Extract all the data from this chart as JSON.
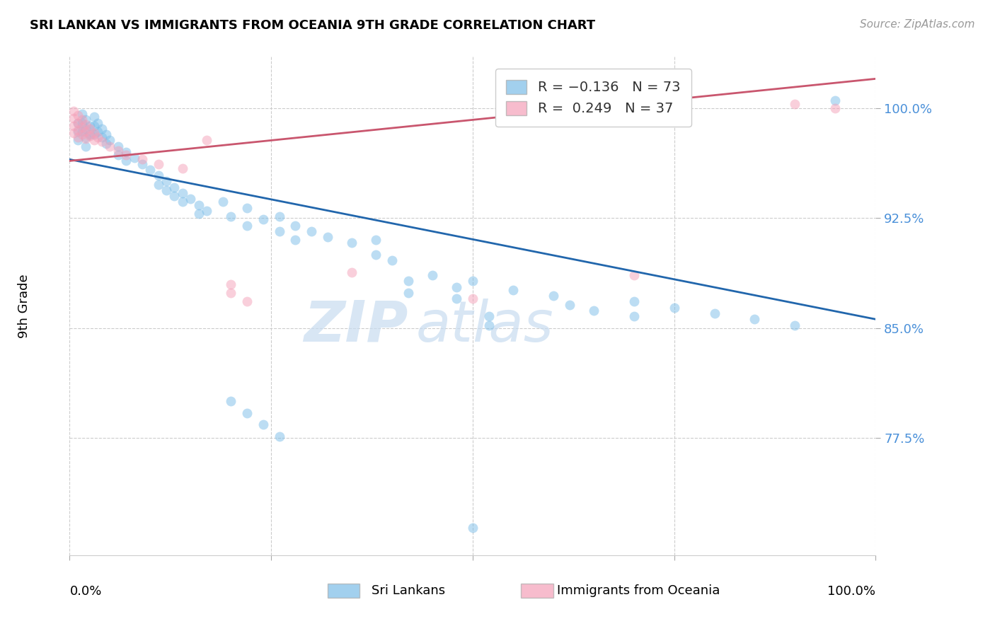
{
  "title": "SRI LANKAN VS IMMIGRANTS FROM OCEANIA 9TH GRADE CORRELATION CHART",
  "source": "Source: ZipAtlas.com",
  "ylabel": "9th Grade",
  "xlim": [
    0.0,
    1.0
  ],
  "ylim": [
    0.695,
    1.035
  ],
  "yticks": [
    0.775,
    0.85,
    0.925,
    1.0
  ],
  "ytick_labels": [
    "77.5%",
    "85.0%",
    "92.5%",
    "100.0%"
  ],
  "xticks": [
    0.0,
    0.25,
    0.5,
    0.75,
    1.0
  ],
  "blue_color": "#7BBDE8",
  "pink_color": "#F4A0B8",
  "blue_line_color": "#2166AC",
  "pink_line_color": "#C9566E",
  "watermark_zip": "ZIP",
  "watermark_atlas": "atlas",
  "blue_scatter": [
    [
      0.01,
      0.99
    ],
    [
      0.01,
      0.984
    ],
    [
      0.01,
      0.978
    ],
    [
      0.015,
      0.996
    ],
    [
      0.015,
      0.99
    ],
    [
      0.015,
      0.984
    ],
    [
      0.02,
      0.992
    ],
    [
      0.02,
      0.986
    ],
    [
      0.02,
      0.98
    ],
    [
      0.02,
      0.974
    ],
    [
      0.025,
      0.988
    ],
    [
      0.025,
      0.982
    ],
    [
      0.03,
      0.994
    ],
    [
      0.03,
      0.988
    ],
    [
      0.03,
      0.982
    ],
    [
      0.035,
      0.99
    ],
    [
      0.035,
      0.984
    ],
    [
      0.04,
      0.986
    ],
    [
      0.04,
      0.98
    ],
    [
      0.045,
      0.982
    ],
    [
      0.045,
      0.976
    ],
    [
      0.05,
      0.978
    ],
    [
      0.06,
      0.974
    ],
    [
      0.06,
      0.968
    ],
    [
      0.07,
      0.97
    ],
    [
      0.07,
      0.964
    ],
    [
      0.08,
      0.966
    ],
    [
      0.09,
      0.962
    ],
    [
      0.1,
      0.958
    ],
    [
      0.11,
      0.954
    ],
    [
      0.11,
      0.948
    ],
    [
      0.12,
      0.95
    ],
    [
      0.12,
      0.944
    ],
    [
      0.13,
      0.946
    ],
    [
      0.13,
      0.94
    ],
    [
      0.14,
      0.942
    ],
    [
      0.14,
      0.936
    ],
    [
      0.15,
      0.938
    ],
    [
      0.16,
      0.934
    ],
    [
      0.16,
      0.928
    ],
    [
      0.17,
      0.93
    ],
    [
      0.19,
      0.936
    ],
    [
      0.2,
      0.926
    ],
    [
      0.22,
      0.932
    ],
    [
      0.22,
      0.92
    ],
    [
      0.24,
      0.924
    ],
    [
      0.26,
      0.926
    ],
    [
      0.26,
      0.916
    ],
    [
      0.28,
      0.92
    ],
    [
      0.28,
      0.91
    ],
    [
      0.3,
      0.916
    ],
    [
      0.32,
      0.912
    ],
    [
      0.35,
      0.908
    ],
    [
      0.38,
      0.91
    ],
    [
      0.38,
      0.9
    ],
    [
      0.4,
      0.896
    ],
    [
      0.42,
      0.882
    ],
    [
      0.42,
      0.874
    ],
    [
      0.45,
      0.886
    ],
    [
      0.48,
      0.878
    ],
    [
      0.48,
      0.87
    ],
    [
      0.5,
      0.882
    ],
    [
      0.52,
      0.858
    ],
    [
      0.52,
      0.852
    ],
    [
      0.55,
      0.876
    ],
    [
      0.6,
      0.872
    ],
    [
      0.62,
      0.866
    ],
    [
      0.65,
      0.862
    ],
    [
      0.7,
      0.868
    ],
    [
      0.7,
      0.858
    ],
    [
      0.75,
      0.864
    ],
    [
      0.8,
      0.86
    ],
    [
      0.85,
      0.856
    ],
    [
      0.9,
      0.852
    ],
    [
      0.95,
      1.005
    ],
    [
      0.2,
      0.8
    ],
    [
      0.22,
      0.792
    ],
    [
      0.24,
      0.784
    ],
    [
      0.26,
      0.776
    ],
    [
      0.5,
      0.714
    ]
  ],
  "pink_scatter": [
    [
      0.005,
      0.998
    ],
    [
      0.005,
      0.993
    ],
    [
      0.005,
      0.988
    ],
    [
      0.005,
      0.983
    ],
    [
      0.01,
      0.995
    ],
    [
      0.01,
      0.99
    ],
    [
      0.01,
      0.985
    ],
    [
      0.01,
      0.98
    ],
    [
      0.015,
      0.992
    ],
    [
      0.015,
      0.987
    ],
    [
      0.015,
      0.982
    ],
    [
      0.02,
      0.989
    ],
    [
      0.02,
      0.984
    ],
    [
      0.02,
      0.979
    ],
    [
      0.025,
      0.986
    ],
    [
      0.025,
      0.981
    ],
    [
      0.03,
      0.983
    ],
    [
      0.03,
      0.978
    ],
    [
      0.035,
      0.98
    ],
    [
      0.04,
      0.977
    ],
    [
      0.05,
      0.974
    ],
    [
      0.06,
      0.971
    ],
    [
      0.07,
      0.968
    ],
    [
      0.09,
      0.965
    ],
    [
      0.11,
      0.962
    ],
    [
      0.14,
      0.959
    ],
    [
      0.17,
      0.978
    ],
    [
      0.2,
      0.88
    ],
    [
      0.2,
      0.874
    ],
    [
      0.22,
      0.868
    ],
    [
      0.35,
      0.888
    ],
    [
      0.7,
      0.886
    ],
    [
      0.9,
      1.003
    ],
    [
      0.95,
      1.0
    ],
    [
      0.5,
      0.87
    ]
  ],
  "blue_line": {
    "x0": 0.0,
    "y0": 0.965,
    "x1": 1.0,
    "y1": 0.856
  },
  "pink_line": {
    "x0": 0.0,
    "y0": 0.964,
    "x1": 1.0,
    "y1": 1.02
  }
}
